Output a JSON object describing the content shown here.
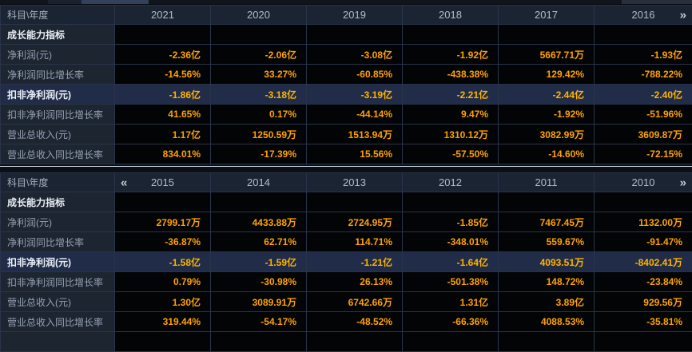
{
  "colors": {
    "page_bg": "#0c1016",
    "header_bg": "#1b2433",
    "label_col_bg": "#1d2531",
    "data_cell_bg": "#030405",
    "highlight_row_bg": "#202c48",
    "value_orange": "#ffa200",
    "grid_border": "#29344a",
    "divider_line": "#c3cbd6",
    "scrollbar_thumb": "#33415a"
  },
  "scrollbar": {
    "name": "horizontal-year-scrollbar"
  },
  "table_top": {
    "corner_label": "科目\\年度",
    "years": [
      "2021",
      "2020",
      "2019",
      "2018",
      "2017",
      "2016"
    ],
    "next_icon": "»",
    "rows": [
      {
        "label": "成长能力指标",
        "values": [
          "",
          "",
          "",
          "",
          "",
          ""
        ]
      },
      {
        "label": "净利润(元)",
        "values": [
          "-2.36亿",
          "-2.06亿",
          "-3.08亿",
          "-1.92亿",
          "5667.71万",
          "-1.93亿"
        ]
      },
      {
        "label": "净利润同比增长率",
        "values": [
          "-14.56%",
          "33.27%",
          "-60.85%",
          "-438.38%",
          "129.42%",
          "-788.22%"
        ]
      },
      {
        "label": "扣非净利润(元)",
        "values": [
          "-1.86亿",
          "-3.18亿",
          "-3.19亿",
          "-2.21亿",
          "-2.44亿",
          "-2.40亿"
        ]
      },
      {
        "label": "扣非净利润同比增长率",
        "values": [
          "41.65%",
          "0.17%",
          "-44.14%",
          "9.47%",
          "-1.92%",
          "-51.96%"
        ]
      },
      {
        "label": "营业总收入(元)",
        "values": [
          "1.17亿",
          "1250.59万",
          "1513.94万",
          "1310.12万",
          "3082.99万",
          "3609.87万"
        ]
      },
      {
        "label": "营业总收入同比增长率",
        "values": [
          "834.01%",
          "-17.39%",
          "15.56%",
          "-57.50%",
          "-14.60%",
          "-72.15%"
        ]
      }
    ]
  },
  "table_bottom": {
    "corner_label": "科目\\年度",
    "years": [
      "2015",
      "2014",
      "2013",
      "2012",
      "2011",
      "2010"
    ],
    "prev_icon": "«",
    "next_icon": "»",
    "rows": [
      {
        "label": "成长能力指标",
        "values": [
          "",
          "",
          "",
          "",
          "",
          ""
        ]
      },
      {
        "label": "净利润(元)",
        "values": [
          "2799.17万",
          "4433.88万",
          "2724.95万",
          "-1.85亿",
          "7467.45万",
          "1132.00万"
        ]
      },
      {
        "label": "净利润同比增长率",
        "values": [
          "-36.87%",
          "62.71%",
          "114.71%",
          "-348.01%",
          "559.67%",
          "-91.47%"
        ]
      },
      {
        "label": "扣非净利润(元)",
        "values": [
          "-1.58亿",
          "-1.59亿",
          "-1.21亿",
          "-1.64亿",
          "4093.51万",
          "-8402.41万"
        ]
      },
      {
        "label": "扣非净利润同比增长率",
        "values": [
          "0.79%",
          "-30.98%",
          "26.13%",
          "-501.38%",
          "148.72%",
          "-23.84%"
        ]
      },
      {
        "label": "营业总收入(元)",
        "values": [
          "1.30亿",
          "3089.91万",
          "6742.66万",
          "1.31亿",
          "3.89亿",
          "929.56万"
        ]
      },
      {
        "label": "营业总收入同比增长率",
        "values": [
          "319.44%",
          "-54.17%",
          "-48.52%",
          "-66.36%",
          "4088.53%",
          "-35.81%"
        ]
      }
    ]
  }
}
